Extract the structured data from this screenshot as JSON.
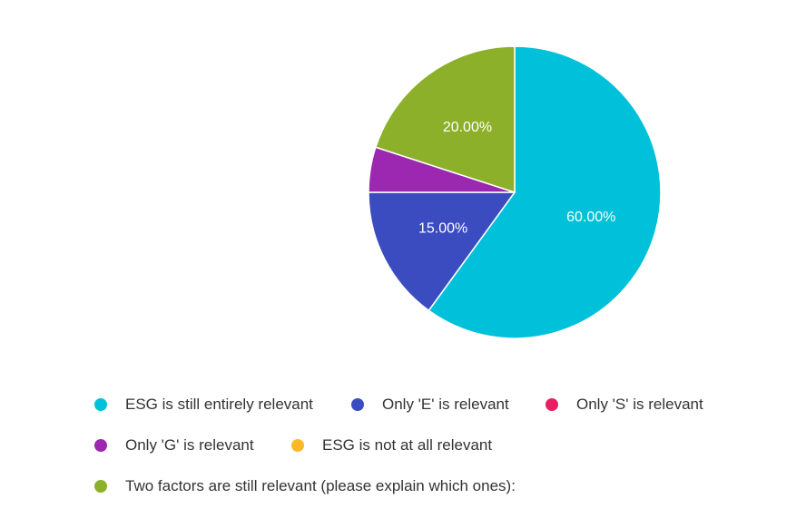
{
  "chart_data": {
    "type": "pie",
    "categories": [
      "ESG is still entirely relevant",
      "Only 'E' is relevant",
      "Only 'S' is relevant",
      "Only 'G' is relevant",
      "ESG is not at all relevant",
      "Two factors are still relevant (please explain which ones):"
    ],
    "values": [
      60,
      15,
      0,
      5,
      0,
      20
    ],
    "value_labels": [
      "60.00%",
      "15.00%",
      "",
      "",
      "",
      "20.00%"
    ],
    "colors": [
      "#00C1D9",
      "#3B4CC0",
      "#E91E63",
      "#9C27B0",
      "#FBB829",
      "#8DB02A"
    ],
    "legend_position": "bottom"
  }
}
